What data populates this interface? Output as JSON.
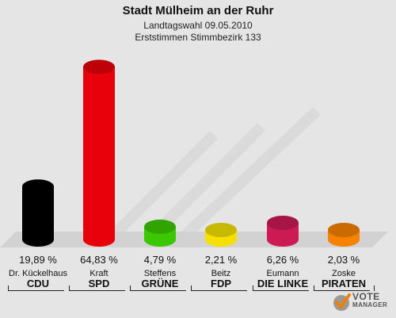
{
  "chart_data": {
    "type": "bar",
    "title": "Stadt Mülheim an der Ruhr",
    "subtitle": "Landtagswahl 09.05.2010",
    "subtitle2": "Erststimmen Stimmbezirk 133",
    "categories": [
      "CDU",
      "SPD",
      "GRÜNE",
      "FDP",
      "DIE LINKE",
      "PIRATEN"
    ],
    "candidates": [
      "Dr. Kückelhaus",
      "Kraft",
      "Steffens",
      "Beitz",
      "Eumann",
      "Zoske"
    ],
    "values": [
      19.89,
      64.83,
      4.79,
      2.21,
      6.26,
      2.03
    ],
    "value_labels": [
      "19,89 %",
      "64,83 %",
      "4,79 %",
      "2,21 %",
      "6,26 %",
      "2,03 %"
    ],
    "colors": [
      "#000000",
      "#e8000b",
      "#3cc800",
      "#f5e000",
      "#cc1a55",
      "#f58200"
    ],
    "ylim": [
      0,
      70
    ]
  },
  "logo": {
    "line1": "VOTE",
    "line2": "MANAGER"
  }
}
